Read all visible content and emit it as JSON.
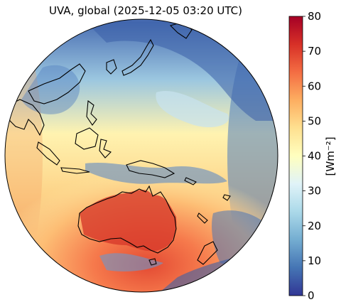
{
  "title": "UVA, global (2025-12-05 03:20 UTC)",
  "colorbar": {
    "label": "[Wm⁻²]",
    "min": 0,
    "max": 80,
    "ticks": [
      "0",
      "10",
      "20",
      "30",
      "40",
      "50",
      "60",
      "70",
      "80"
    ],
    "colormap": "RdYlBu_r",
    "stops": [
      "#313695",
      "#4575b4",
      "#74add1",
      "#abd9e9",
      "#e0f3f8",
      "#ffffbf",
      "#fee090",
      "#fdae61",
      "#f46d43",
      "#d73027",
      "#a50026"
    ]
  },
  "map": {
    "projection": "orthographic (near-side perspective)",
    "region": "Asia-Pacific / Australia",
    "coastlines": true
  }
}
